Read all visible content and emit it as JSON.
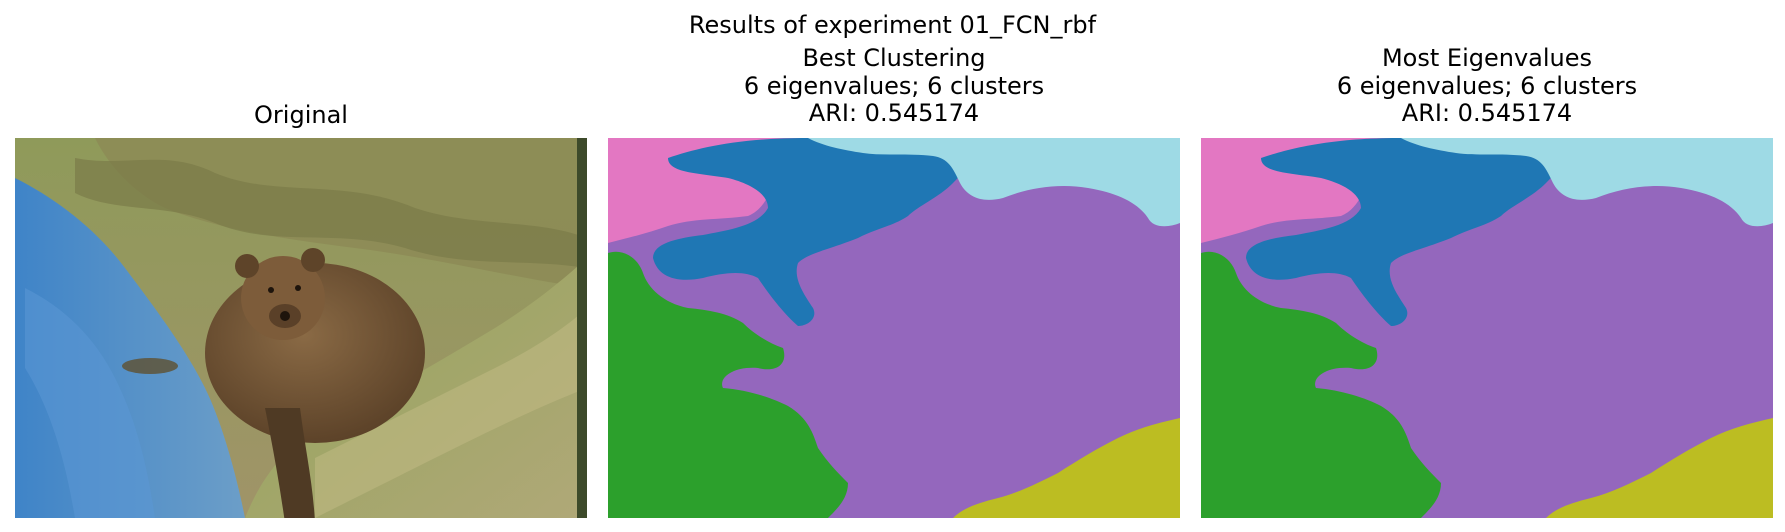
{
  "figure": {
    "suptitle": "Results of experiment 01_FCN_rbf"
  },
  "panels": [
    {
      "title_lines": [
        "Original"
      ],
      "content": "original photograph: brown bear on grassy riverbank beside blue water"
    },
    {
      "title_lines": [
        "Best Clustering",
        "6 eigenvalues; 6 clusters",
        "ARI: 0.545174"
      ],
      "content": "segmentation map"
    },
    {
      "title_lines": [
        "Most Eigenvalues",
        "6 eigenvalues; 6 clusters",
        "ARI: 0.545174"
      ],
      "content": "segmentation map"
    }
  ],
  "segment_colors": {
    "purple": "#9467bd",
    "blue": "#1f77b4",
    "light_blue": "#9edae5",
    "pink": "#e377c2",
    "green": "#2ca02c",
    "olive": "#bcbd22"
  },
  "photo_colors": {
    "water": "#4a86c4",
    "grass": "#8a9a55",
    "bear": "#7a5a3a",
    "background": "#9a9060"
  }
}
